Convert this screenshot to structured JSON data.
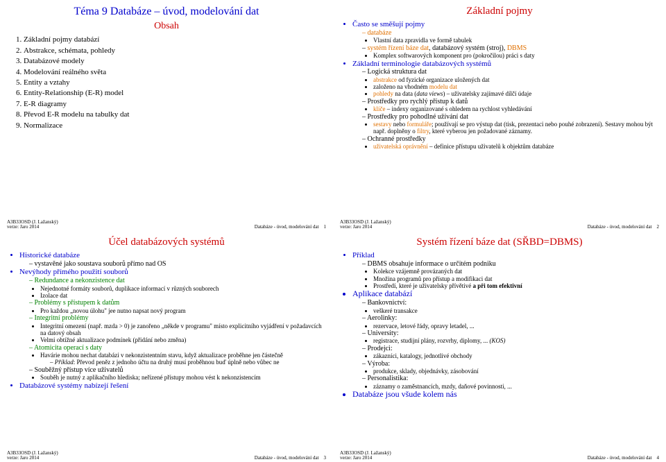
{
  "meta": {
    "author_line": "A3B33OSD (J. Lažanský)",
    "version_line": "verze: Jaro 2014",
    "footer_center": "Databáze - úvod, modelování dat"
  },
  "fonts": {
    "title_size": 16,
    "sub_size": 14,
    "body_size": 11,
    "small_size": 10,
    "tiny_size": 9,
    "footer_size": 7
  },
  "colors": {
    "blue": "#0000cc",
    "red": "#cc0000",
    "green": "#008000",
    "orange": "#e07000",
    "black": "#000000"
  },
  "slide1": {
    "title": "Téma 9 Databáze – úvod, modelování dat",
    "sub": "Obsah",
    "items": [
      "Základní pojmy databází",
      "Abstrakce, schémata, pohledy",
      "Databázové modely",
      "Modelování reálného světa",
      "Entity a vztahy",
      "Entity-Relationship (E-R) model",
      "E-R diagramy",
      "Převod E-R modelu na tabulky dat",
      "Normalizace"
    ],
    "page": "1"
  },
  "slide2": {
    "title": "Základní pojmy",
    "b1": "Často se směšují pojmy",
    "b1_1": "databáze",
    "b1_1_1": "Vlastní data zpravidla ve formě tabulek",
    "b1_2a": "systém řízení báze dat",
    "b1_2b": ", databázový systém (stroj), ",
    "b1_2c": "DBMS",
    "b1_2_1": "Komplex softwarových komponent pro (pokročilou) práci s daty",
    "b2": "Základní terminologie databázových systémů",
    "b2_1": "Logická struktura dat",
    "b2_1_1a": "abstrakce",
    "b2_1_1b": " od fyzické organizace uložených dat",
    "b2_1_2a": "založeno na vhodném ",
    "b2_1_2b": "modelu dat",
    "b2_1_3a": "pohledy ",
    "b2_1_3b": "na data (",
    "b2_1_3c": "data views",
    "b2_1_3d": ") – uživatelsky zajímavé dílčí údaje",
    "b2_2": "Prostředky pro rychlý přístup k datů",
    "b2_2_1a": "klíče",
    "b2_2_1b": " – indexy organizované s ohledem na rychlost vyhledávání",
    "b2_3": "Prostředky pro pohodlné užívání dat",
    "b2_3_1a": "sestavy",
    "b2_3_1b": " nebo ",
    "b2_3_1c": "formuláře",
    "b2_3_1d": "; používají se pro výstup dat (tisk, prezentaci nebo pouhé zobrazení). Sestavy mohou být např. doplněny o ",
    "b2_3_1e": "filtry",
    "b2_3_1f": ", které vyberou jen požadované záznamy.",
    "b2_4": "Ochranné prostředky",
    "b2_4_1a": "uživatelská oprávnění",
    "b2_4_1b": " – definice přístupu uživatelů k objektům databáze",
    "page": "2"
  },
  "slide3": {
    "title": "Účel databázových systémů",
    "a1": "Historické databáze",
    "a1_1": "vystavěné jako soustava souborů přímo nad OS",
    "a2": "Nevýhody přímého použití souborů",
    "a2_1": "Redundance a nekonzistence dat",
    "a2_1_1": "Nejednotné formáty souborů, duplikace informací v různých souborech",
    "a2_1_2": "Izolace dat",
    "a2_2": "Problémy s přístupem k datům",
    "a2_2_1": "Pro každou „novou úlohu\" jee nutno napsat nový program",
    "a2_3": "Integritní problémy",
    "a2_3_1": "Integritní omezení (např. mzda > 0) je zanořeno „někde v programu\" místo explicitního vyjádření v požadavcích na datový obsah",
    "a2_3_2": "Velmi obtížné aktualizace podmínek (přidání nebo změna)",
    "a2_4": "Atomicita operací s daty",
    "a2_4_1": "Havárie mohou nechat databázi v nekonzistentním stavu, když aktualizace proběhne jen částečně",
    "a2_4_2a": "Příklad",
    "a2_4_2b": ": Převod peněz z jednoho účtu na druhý musí proběhnou buď úplně nebo vůbec ne",
    "a2_5": "Souběžný přístup více uživatelů",
    "a2_5_1": "Souběh je nutný z aplikačního hlediska; neřízené přístupy mohou vést k nekonzistencím",
    "a3": "Databázové systémy nabízejí řešení",
    "page": "3"
  },
  "slide4": {
    "title": "Systém řízení báze dat (SŘBD=DBMS)",
    "p1": "Příklad",
    "p1_1": "DBMS obsahuje informace o určitém podniku",
    "p1_1_1": "Kolekce vzájemně provázaných dat",
    "p1_1_2": "Množina programů pro přístup a modifikaci dat",
    "p1_1_3a": "Prostředí, které je uživatelsky přívětivé ",
    "p1_1_3b": "a při tom efektivní",
    "p2": "Aplikace databází",
    "p2_1": "Bankovnictví:",
    "p2_1_1": "veškeré transakce",
    "p2_2": "Aerolinky:",
    "p2_2_1": "rezervace, letové řády, opravy letadel, ...",
    "p2_3": "University:",
    "p2_3_1a": "registrace, studijní plány, rozvrhy, diplomy, ... ",
    "p2_3_1b": "(KOS)",
    "p2_4": "Prodejci:",
    "p2_4_1": "zákazníci, katalogy, jednotlivé obchody",
    "p2_5": "Výroba:",
    "p2_5_1": "produkce, sklady, objednávky, zásobování",
    "p2_6": "Personalistika:",
    "p2_6_1": "záznamy o zaměstnancích, mzdy, daňové povinnosti, ...",
    "p3": "Databáze jsou všude kolem nás",
    "page": "4"
  }
}
